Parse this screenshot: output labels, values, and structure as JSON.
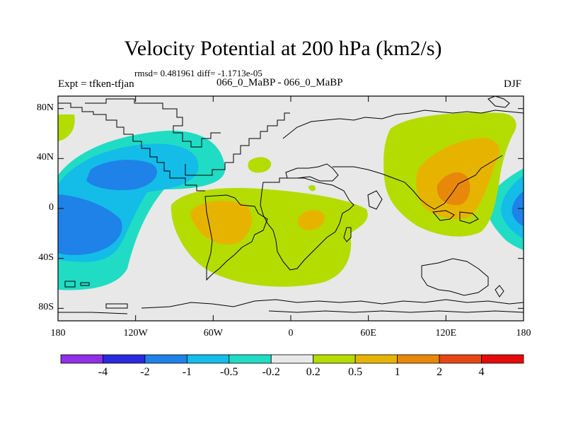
{
  "title": "Velocity Potential at 200 hPa (km2/s)",
  "stats": "rmsd= 0.481961  diff= -1.1713e-05",
  "expt": "Expt = tfken-tfjan",
  "case": "066_0_MaBP - 066_0_MaBP",
  "season": "DJF",
  "lat_ticks": [
    {
      "lat": 80,
      "label": "80N"
    },
    {
      "lat": 40,
      "label": "40N"
    },
    {
      "lat": 0,
      "label": "0"
    },
    {
      "lat": -40,
      "label": "40S"
    },
    {
      "lat": -80,
      "label": "80S"
    }
  ],
  "lon_ticks": [
    {
      "lon": -180,
      "label": "180"
    },
    {
      "lon": -120,
      "label": "120W"
    },
    {
      "lon": -60,
      "label": "60W"
    },
    {
      "lon": 0,
      "label": "0"
    },
    {
      "lon": 60,
      "label": "60E"
    },
    {
      "lon": 120,
      "label": "120E"
    },
    {
      "lon": 180,
      "label": "180"
    }
  ],
  "colorbar": {
    "colors": [
      "#8f30e8",
      "#2a2ae0",
      "#1e82e8",
      "#14bce8",
      "#20dcc4",
      "#e8e8e8",
      "#b4dc00",
      "#e6b400",
      "#e8880a",
      "#e84614",
      "#e60a0a"
    ],
    "labels": [
      "-4",
      "-2",
      "-1",
      "-0.5",
      "-0.2",
      "0.2",
      "0.5",
      "1",
      "2",
      "4"
    ]
  },
  "map_extent": {
    "lon": [
      -180,
      180
    ],
    "lat": [
      -90,
      90
    ]
  }
}
